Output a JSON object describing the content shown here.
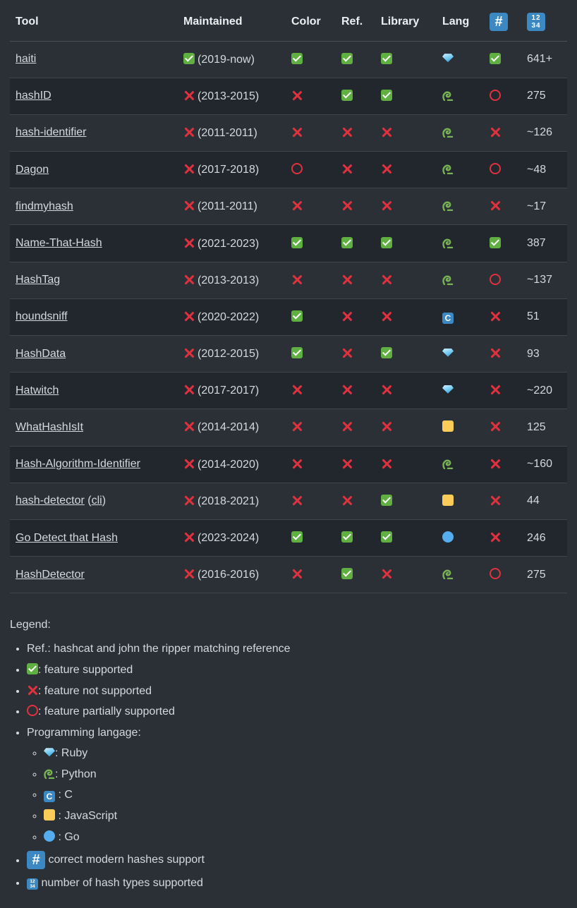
{
  "table": {
    "headers": {
      "tool": "Tool",
      "maintained": "Maintained",
      "color": "Color",
      "ref": "Ref.",
      "library": "Library",
      "lang": "Lang",
      "modern_icon": "keycap-hash-icon",
      "count_icon": "input-numbers-icon"
    },
    "rows": [
      {
        "tool": "haiti",
        "maintained": "check",
        "years": "(2019-now)",
        "color": "check",
        "ref": "check",
        "library": "check",
        "lang": "ruby",
        "modern": "check",
        "count": "641+"
      },
      {
        "tool": "hashID",
        "maintained": "cross",
        "years": "(2013-2015)",
        "color": "cross",
        "ref": "check",
        "library": "check",
        "lang": "python",
        "modern": "circle",
        "count": "275"
      },
      {
        "tool": "hash-identifier",
        "maintained": "cross",
        "years": "(2011-2011)",
        "color": "cross",
        "ref": "cross",
        "library": "cross",
        "lang": "python",
        "modern": "cross",
        "count": "~126"
      },
      {
        "tool": "Dagon",
        "maintained": "cross",
        "years": "(2017-2018)",
        "color": "circle",
        "ref": "cross",
        "library": "cross",
        "lang": "python",
        "modern": "circle",
        "count": "~48"
      },
      {
        "tool": "findmyhash",
        "maintained": "cross",
        "years": "(2011-2011)",
        "color": "cross",
        "ref": "cross",
        "library": "cross",
        "lang": "python",
        "modern": "cross",
        "count": "~17"
      },
      {
        "tool": "Name-That-Hash",
        "maintained": "cross",
        "years": "(2021-2023)",
        "color": "check",
        "ref": "check",
        "library": "check",
        "lang": "python",
        "modern": "check",
        "count": "387"
      },
      {
        "tool": "HashTag",
        "maintained": "cross",
        "years": "(2013-2013)",
        "color": "cross",
        "ref": "cross",
        "library": "cross",
        "lang": "python",
        "modern": "circle",
        "count": "~137"
      },
      {
        "tool": "houndsniff",
        "maintained": "cross",
        "years": "(2020-2022)",
        "color": "check",
        "ref": "cross",
        "library": "cross",
        "lang": "c",
        "modern": "cross",
        "count": "51"
      },
      {
        "tool": "HashData",
        "maintained": "cross",
        "years": "(2012-2015)",
        "color": "check",
        "ref": "cross",
        "library": "check",
        "lang": "ruby",
        "modern": "cross",
        "count": "93"
      },
      {
        "tool": "Hatwitch",
        "maintained": "cross",
        "years": "(2017-2017)",
        "color": "cross",
        "ref": "cross",
        "library": "cross",
        "lang": "ruby",
        "modern": "cross",
        "count": "~220"
      },
      {
        "tool": "WhatHashIsIt",
        "maintained": "cross",
        "years": "(2014-2014)",
        "color": "cross",
        "ref": "cross",
        "library": "cross",
        "lang": "javascript",
        "modern": "cross",
        "count": "125"
      },
      {
        "tool": "Hash-Algorithm-Identifier",
        "maintained": "cross",
        "years": "(2014-2020)",
        "color": "cross",
        "ref": "cross",
        "library": "cross",
        "lang": "python",
        "modern": "cross",
        "count": "~160"
      },
      {
        "tool": "hash-detector",
        "tool_extra": "cli",
        "maintained": "cross",
        "years": "(2018-2021)",
        "color": "cross",
        "ref": "cross",
        "library": "check",
        "lang": "javascript",
        "modern": "cross",
        "count": "44"
      },
      {
        "tool": "Go Detect that Hash",
        "maintained": "cross",
        "years": "(2023-2024)",
        "color": "check",
        "ref": "check",
        "library": "check",
        "lang": "go",
        "modern": "cross",
        "count": "246"
      },
      {
        "tool": "HashDetector",
        "maintained": "cross",
        "years": "(2016-2016)",
        "color": "cross",
        "ref": "check",
        "library": "cross",
        "lang": "python",
        "modern": "circle",
        "count": "275"
      }
    ]
  },
  "legend": {
    "title": "Legend:",
    "ref": "Ref.: hashcat and john the ripper matching reference",
    "supported": ": feature supported",
    "not_supported": ": feature not supported",
    "partial": ": feature partially supported",
    "lang_title": "Programming langage:",
    "ruby": ": Ruby",
    "python": ": Python",
    "c": " : C",
    "javascript": " : JavaScript",
    "go": " : Go",
    "modern": " correct modern hashes support",
    "count": " number of hash types supported"
  }
}
